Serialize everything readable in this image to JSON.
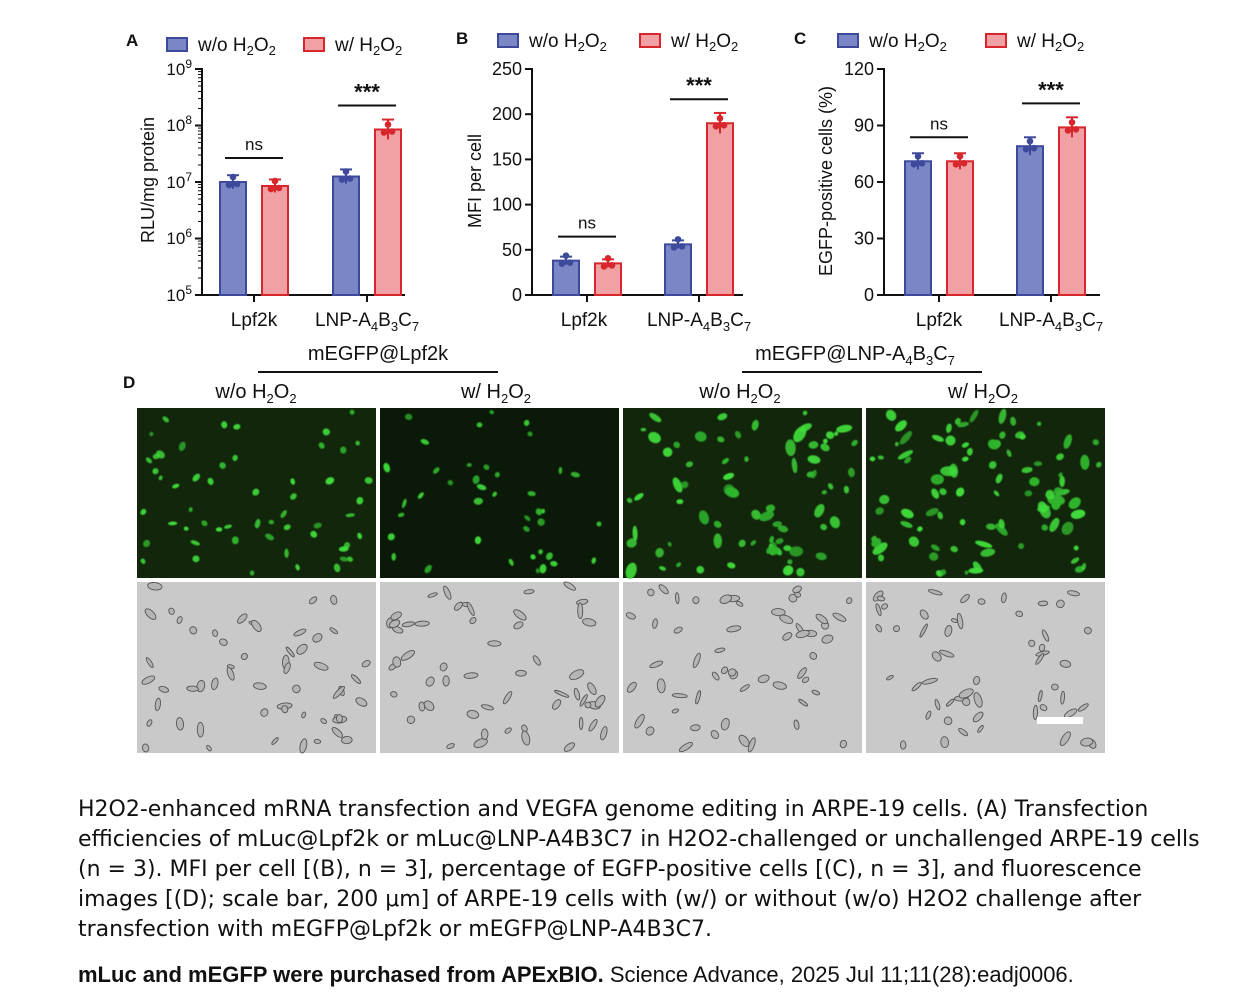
{
  "legend": {
    "wo": "w/o H2O2",
    "w": "w/ H2O2"
  },
  "colors": {
    "wo_fill": "#7b86c6",
    "wo_stroke": "#3d4a9c",
    "w_fill": "#f1a0a3",
    "w_stroke": "#d8262d"
  },
  "chart_data": [
    {
      "panel": "A",
      "type": "bar",
      "ylabel": "RLU/mg protein",
      "yscale": "log",
      "ylim": [
        100000,
        1000000000
      ],
      "yticks": [
        "10^5",
        "10^6",
        "10^7",
        "10^8",
        "10^9"
      ],
      "categories": [
        "Lpf2k",
        "LNP-A4B3C7"
      ],
      "series": [
        {
          "name": "w/o H2O2",
          "values": [
            10000000,
            12500000
          ]
        },
        {
          "name": "w/ H2O2",
          "values": [
            8500000,
            85000000
          ]
        }
      ],
      "significance": [
        "ns",
        "***"
      ]
    },
    {
      "panel": "B",
      "type": "bar",
      "ylabel": "MFI per cell",
      "ylim": [
        0,
        250
      ],
      "yticks": [
        "0",
        "50",
        "100",
        "150",
        "200",
        "250"
      ],
      "categories": [
        "Lpf2k",
        "LNP-A4B3C7"
      ],
      "series": [
        {
          "name": "w/o H2O2",
          "values": [
            38,
            56
          ]
        },
        {
          "name": "w/ H2O2",
          "values": [
            35,
            190
          ]
        }
      ],
      "significance": [
        "ns",
        "***"
      ]
    },
    {
      "panel": "C",
      "type": "bar",
      "ylabel": "EGFP-positive cells (%)",
      "ylim": [
        0,
        120
      ],
      "yticks": [
        "0",
        "30",
        "60",
        "90",
        "120"
      ],
      "categories": [
        "Lpf2k",
        "LNP-A4B3C7"
      ],
      "series": [
        {
          "name": "w/o H2O2",
          "values": [
            71,
            79
          ]
        },
        {
          "name": "w/ H2O2",
          "values": [
            71,
            89
          ]
        }
      ],
      "significance": [
        "ns",
        "***"
      ]
    }
  ],
  "panel_d": {
    "label": "D",
    "groups": [
      "mEGFP@Lpf2k",
      "mEGFP@LNP-A4B3C7"
    ],
    "columns": [
      "w/o H2O2",
      "w/ H2O2",
      "w/o H2O2",
      "w/ H2O2"
    ]
  },
  "caption": "H2O2-enhanced mRNA transfection and VEGFA genome editing in ARPE-19 cells. (A) Transfection efficiencies of mLuc@Lpf2k or mLuc@LNP-A4B3C7 in H2O2-challenged or unchallenged ARPE-19 cells (n = 3). MFI per cell [(B), n = 3], percentage of EGFP-positive cells [(C), n = 3], and fluorescence images [(D); scale bar, 200 μm] of ARPE-19 cells with (w/) or without (w/o) H2O2 challenge after transfection with mEGFP@Lpf2k or mEGFP@LNP-A4B3C7.",
  "credit_bold": "mLuc and mEGFP were purchased from APExBIO.",
  "credit_rest": " Science Advance, 2025 Jul 11;11(28):eadj0006."
}
